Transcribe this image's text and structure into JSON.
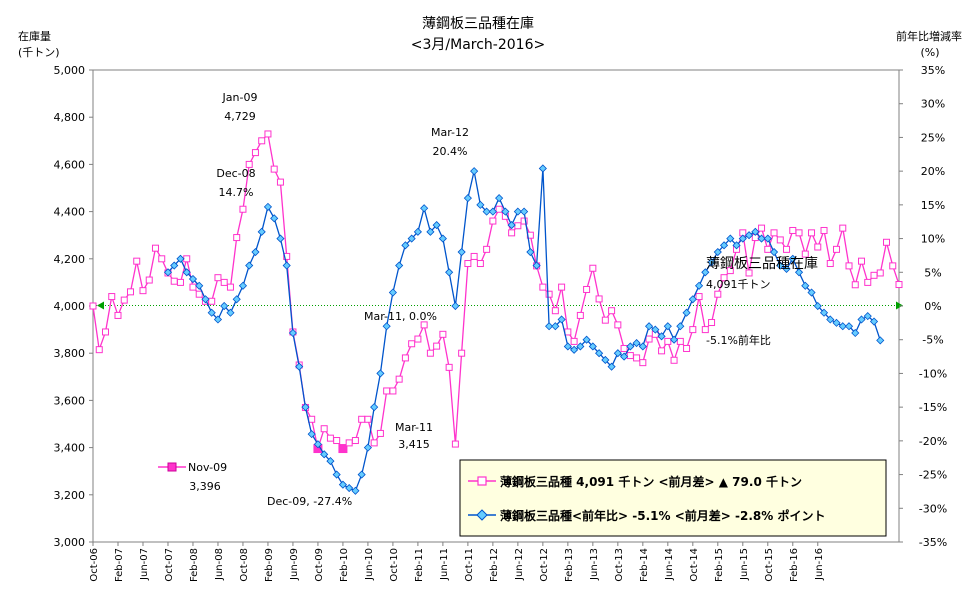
{
  "chart_data": {
    "type": "line",
    "title": "薄鋼板三品種在庫",
    "subtitle": "<3月/March-2016>",
    "y_left": {
      "label_line1": "在庫量",
      "label_line2": "(千トン)",
      "ylim": [
        3000,
        5000
      ],
      "ticks": [
        "3,000",
        "3,200",
        "3,400",
        "3,600",
        "3,800",
        "4,000",
        "4,200",
        "4,400",
        "4,600",
        "4,800",
        "5,000"
      ]
    },
    "y_right": {
      "label_line1": "前年比増減率",
      "label_line2": "(%)",
      "ylim": [
        -35,
        35
      ],
      "ticks": [
        "-35%",
        "-30%",
        "-25%",
        "-20%",
        "-15%",
        "-10%",
        "-5%",
        "0%",
        "5%",
        "10%",
        "15%",
        "20%",
        "25%",
        "30%",
        "35%"
      ]
    },
    "x_ticks": [
      "Oct-06",
      "Feb-07",
      "Jun-07",
      "Oct-07",
      "Feb-08",
      "Jun-08",
      "Oct-08",
      "Feb-09",
      "Jun-09",
      "Oct-09",
      "Feb-10",
      "Jun-10",
      "Oct-10",
      "Feb-11",
      "Jun-11",
      "Oct-11",
      "Feb-12",
      "Jun-12",
      "Oct-12",
      "Feb-13",
      "Jun-13",
      "Oct-13",
      "Feb-14",
      "Jun-14",
      "Oct-14",
      "Feb-15",
      "Jun-15",
      "Oct-15",
      "Feb-16",
      "Jun-16"
    ],
    "grid": false,
    "legend_position": "bottom-right",
    "series": [
      {
        "name": "薄鋼板三品種 4,091 千トン <前月差> ▲ 79.0 千トン",
        "axis": "left",
        "color": "#ff33cc",
        "marker": "square",
        "values": [
          4000,
          3815,
          3890,
          4040,
          3960,
          4025,
          4060,
          4190,
          4065,
          4110,
          4245,
          4200,
          4140,
          4105,
          4100,
          4200,
          4080,
          4050,
          4020,
          4020,
          4120,
          4100,
          4080,
          4290,
          4410,
          4600,
          4650,
          4700,
          4729,
          4580,
          4525,
          4210,
          3890,
          3750,
          3570,
          3520,
          3396,
          3480,
          3440,
          3430,
          3396,
          3420,
          3430,
          3520,
          3520,
          3420,
          3460,
          3640,
          3640,
          3690,
          3780,
          3840,
          3860,
          3920,
          3800,
          3830,
          3880,
          3740,
          3415,
          3800,
          4180,
          4210,
          4180,
          4240,
          4360,
          4410,
          4380,
          4310,
          4340,
          4360,
          4300,
          4170,
          4080,
          4050,
          3980,
          4080,
          3890,
          3850,
          3960,
          4070,
          4160,
          4030,
          3940,
          3980,
          3920,
          3820,
          3790,
          3780,
          3760,
          3860,
          3880,
          3810,
          3850,
          3770,
          3850,
          3820,
          3900,
          4040,
          3900,
          3930,
          4050,
          4120,
          4150,
          4240,
          4310,
          4140,
          4290,
          4330,
          4240,
          4310,
          4280,
          4240,
          4320,
          4310,
          4220,
          4310,
          4250,
          4320,
          4180,
          4240,
          4330,
          4170,
          4090,
          4190,
          4100,
          4130,
          4140,
          4270,
          4170,
          4091
        ]
      },
      {
        "name": "薄鋼板三品種<前年比> -5.1% <前月差> -2.8% ポイント",
        "axis": "right",
        "color": "#0055cc",
        "marker": "diamond",
        "values": [
          null,
          null,
          null,
          null,
          null,
          null,
          null,
          null,
          null,
          null,
          null,
          null,
          5,
          6,
          7,
          5,
          4,
          3,
          1,
          -1,
          -2,
          0,
          -1,
          1,
          3,
          6,
          8,
          11,
          14.7,
          13,
          10,
          6,
          -4,
          -9,
          -15,
          -19,
          -20.5,
          -22,
          -23,
          -25,
          -26.5,
          -27,
          -27.4,
          -25,
          -21,
          -15,
          -10,
          -3,
          2,
          6,
          9,
          10,
          11,
          14.5,
          11,
          12,
          10,
          5,
          0,
          8,
          16,
          20,
          15,
          14,
          14,
          16,
          14,
          12,
          14,
          14,
          8,
          6,
          20.4,
          -3,
          -3,
          -2,
          -6,
          -6.5,
          -6,
          -5,
          -6,
          -7,
          -8,
          -9,
          -7,
          -7.5,
          -6,
          -5.5,
          -6,
          -3,
          -3.5,
          -4.5,
          -3,
          -5,
          -3,
          -1,
          1,
          3,
          5,
          6.5,
          8,
          9,
          10,
          9,
          10,
          10.5,
          11,
          10,
          10,
          8,
          6,
          5.5,
          7,
          5,
          3,
          2,
          0,
          -1,
          -2,
          -2.5,
          -3,
          -3,
          -4,
          -2,
          -1.5,
          -2.3,
          -5.1
        ]
      }
    ],
    "annotations": [
      {
        "label": "Jan-09",
        "value": "4,729"
      },
      {
        "label": "Dec-08",
        "value": "14.7%"
      },
      {
        "label": "Mar-12",
        "value": "20.4%"
      },
      {
        "label": "Mar-11, 0.0%",
        "value": ""
      },
      {
        "label": "Mar-11",
        "value": "3,415"
      },
      {
        "label": "Nov-09",
        "value": "3,396"
      },
      {
        "label": "Dec-09, -27.4%",
        "value": ""
      }
    ],
    "end_labels": {
      "series_name": "薄鋼板三品種在庫",
      "stock_value": "4,091千トン",
      "yoy_value": "-5.1%前年比"
    }
  }
}
